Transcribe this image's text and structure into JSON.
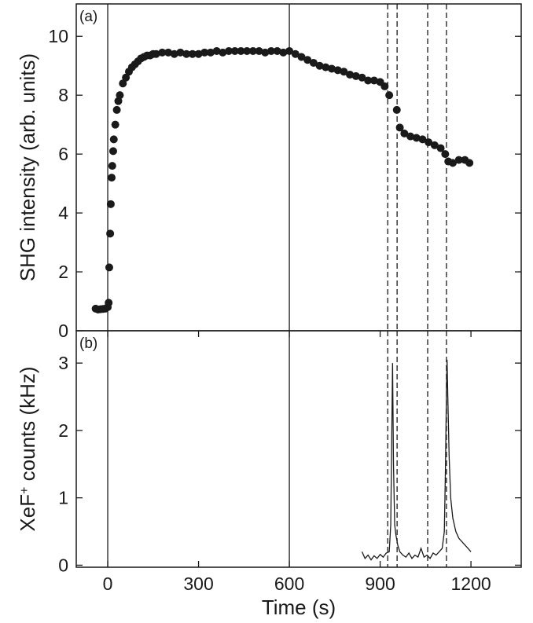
{
  "chart_data": [
    {
      "type": "scatter",
      "panel_label": "(a)",
      "ylabel": "SHG intensity (arb. units)",
      "color": "#1a1a1a",
      "x": [
        -40,
        -32,
        -24,
        -16,
        -8,
        0,
        3,
        5,
        8,
        10,
        13,
        15,
        18,
        20,
        25,
        30,
        35,
        40,
        50,
        60,
        70,
        80,
        90,
        100,
        110,
        120,
        130,
        140,
        150,
        160,
        180,
        200,
        220,
        240,
        260,
        280,
        300,
        320,
        340,
        360,
        380,
        400,
        420,
        440,
        460,
        480,
        500,
        520,
        540,
        560,
        580,
        600,
        620,
        640,
        660,
        680,
        700,
        720,
        740,
        760,
        780,
        800,
        820,
        840,
        860,
        880,
        900,
        915,
        930,
        955,
        965,
        980,
        1000,
        1020,
        1040,
        1060,
        1080,
        1100,
        1115,
        1125,
        1140,
        1160,
        1180,
        1195
      ],
      "values": [
        0.75,
        0.72,
        0.73,
        0.74,
        0.75,
        0.8,
        0.95,
        2.15,
        3.3,
        4.3,
        5.2,
        5.6,
        6.1,
        6.5,
        7.0,
        7.5,
        7.8,
        8.0,
        8.4,
        8.6,
        8.8,
        8.95,
        9.05,
        9.15,
        9.25,
        9.3,
        9.35,
        9.35,
        9.4,
        9.4,
        9.45,
        9.45,
        9.4,
        9.45,
        9.4,
        9.4,
        9.4,
        9.45,
        9.45,
        9.5,
        9.45,
        9.5,
        9.5,
        9.5,
        9.5,
        9.5,
        9.5,
        9.45,
        9.5,
        9.5,
        9.45,
        9.5,
        9.4,
        9.3,
        9.2,
        9.1,
        9.0,
        8.95,
        8.9,
        8.85,
        8.8,
        8.7,
        8.65,
        8.6,
        8.5,
        8.5,
        8.45,
        8.3,
        8.0,
        7.5,
        6.9,
        6.7,
        6.6,
        6.55,
        6.5,
        6.4,
        6.3,
        6.2,
        6.0,
        5.75,
        5.7,
        5.8,
        5.8,
        5.7
      ],
      "xlim": [
        -104,
        1366
      ],
      "ylim": [
        0,
        11.1
      ],
      "yticks": [
        0,
        2,
        4,
        6,
        8,
        10
      ],
      "vlines": [
        {
          "value": 0,
          "style": "solid"
        },
        {
          "value": 600,
          "style": "solid"
        },
        {
          "value": 925,
          "style": "dashed"
        },
        {
          "value": 956,
          "style": "dashed"
        },
        {
          "value": 1057,
          "style": "dashed"
        },
        {
          "value": 1119,
          "style": "dashed"
        }
      ]
    },
    {
      "type": "line",
      "panel_label": "(b)",
      "ylabel": [
        "XeF",
        "+",
        " counts (kHz)"
      ],
      "xlabel": "Time (s)",
      "color": "#1a1a1a",
      "x": [
        840,
        850,
        860,
        870,
        880,
        890,
        900,
        910,
        920,
        930,
        935,
        938,
        941,
        944,
        948,
        952,
        958,
        965,
        975,
        985,
        995,
        1005,
        1015,
        1025,
        1035,
        1045,
        1055,
        1065,
        1075,
        1085,
        1095,
        1105,
        1112,
        1116,
        1119,
        1121,
        1124,
        1128,
        1133,
        1140,
        1150,
        1160,
        1170,
        1180,
        1190,
        1200
      ],
      "values": [
        0.2,
        0.1,
        0.15,
        0.08,
        0.14,
        0.1,
        0.16,
        0.12,
        0.18,
        0.2,
        0.6,
        1.8,
        3.0,
        1.5,
        0.6,
        0.45,
        0.3,
        0.2,
        0.15,
        0.12,
        0.18,
        0.1,
        0.15,
        0.12,
        0.25,
        0.12,
        0.15,
        0.1,
        0.18,
        0.15,
        0.2,
        0.25,
        0.5,
        1.5,
        2.6,
        3.05,
        2.4,
        1.6,
        1.0,
        0.7,
        0.5,
        0.4,
        0.35,
        0.3,
        0.25,
        0.2
      ],
      "xlim": [
        -104,
        1366
      ],
      "ylim": [
        -0.03,
        3.48
      ],
      "xticks": [
        0,
        300,
        600,
        900,
        1200
      ],
      "yticks": [
        0,
        1,
        2,
        3
      ],
      "vlines": [
        {
          "value": 0,
          "style": "solid"
        },
        {
          "value": 600,
          "style": "solid"
        },
        {
          "value": 925,
          "style": "dashed"
        },
        {
          "value": 956,
          "style": "dashed"
        },
        {
          "value": 1057,
          "style": "dashed"
        },
        {
          "value": 1119,
          "style": "dashed"
        }
      ]
    }
  ]
}
